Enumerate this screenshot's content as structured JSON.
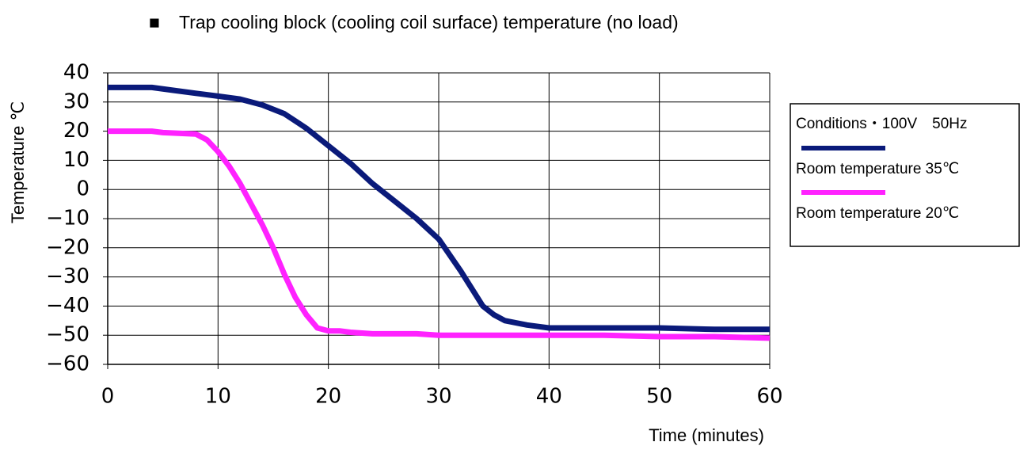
{
  "chart_data": {
    "type": "line",
    "title": "Trap cooling block (cooling coil surface) temperature (no load)",
    "title_marker": "■",
    "xlabel": "Time (minutes)",
    "ylabel": "Temperature ℃",
    "xlim": [
      0,
      60
    ],
    "ylim": [
      -60,
      40
    ],
    "x_ticks": [
      0,
      10,
      20,
      30,
      40,
      50,
      60
    ],
    "y_ticks": [
      40,
      30,
      20,
      10,
      0,
      -10,
      -20,
      -30,
      -40,
      -50,
      -60
    ],
    "x_tick_labels": [
      "0",
      "10",
      "20",
      "30",
      "40",
      "50",
      "60"
    ],
    "y_tick_labels": [
      "40",
      "30",
      "20",
      "10",
      "0",
      "−10",
      "−20",
      "−30",
      "−40",
      "−50",
      "−60"
    ],
    "grid": true,
    "legend_position": "right",
    "legend": {
      "header": "Conditions・100V　50Hz"
    },
    "series": [
      {
        "name": "Room temperature 35℃",
        "color": "#0a1a7a",
        "x": [
          0,
          4,
          6,
          8,
          10,
          12,
          14,
          16,
          18,
          20,
          22,
          24,
          26,
          28,
          30,
          32,
          34,
          35,
          36,
          38,
          40,
          45,
          50,
          55,
          60
        ],
        "y": [
          35,
          35,
          34,
          33,
          32,
          31,
          29,
          26,
          21,
          15,
          9,
          2,
          -4,
          -10,
          -17,
          -28,
          -40,
          -43,
          -45,
          -46.5,
          -47.5,
          -47.5,
          -47.5,
          -48,
          -48
        ]
      },
      {
        "name": "Room temperature 20℃",
        "color": "#ff22ff",
        "x": [
          0,
          4,
          5,
          8,
          9,
          10,
          11,
          12,
          13,
          14,
          15,
          16,
          17,
          18,
          19,
          20,
          21,
          22,
          24,
          26,
          28,
          30,
          35,
          40,
          45,
          50,
          55,
          60
        ],
        "y": [
          20,
          20,
          19.5,
          19,
          17,
          13,
          8,
          2,
          -5,
          -12,
          -20,
          -29,
          -37,
          -43,
          -47.5,
          -48.5,
          -48.5,
          -49,
          -49.5,
          -49.5,
          -49.5,
          -50,
          -50,
          -50,
          -50,
          -50.5,
          -50.5,
          -51
        ]
      }
    ]
  }
}
